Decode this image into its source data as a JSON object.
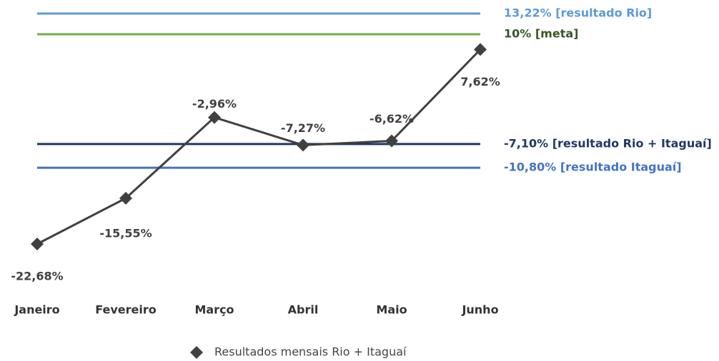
{
  "chart_data": {
    "type": "line",
    "categories": [
      "Janeiro",
      "Fevereiro",
      "Março",
      "Abril",
      "Maio",
      "Junho"
    ],
    "series": [
      {
        "name": "Resultados mensais Rio + Itaguaí",
        "color": "#404040",
        "values": [
          -22.68,
          -15.55,
          -2.96,
          -7.27,
          -6.62,
          7.62
        ],
        "value_labels": [
          "-22,68%",
          "-15,55%",
          "-2,96%",
          "-7,27%",
          "-6,62%",
          "7,62%"
        ]
      }
    ],
    "reference_lines": [
      {
        "value": 13.22,
        "label": "13,22% [resultado Rio]",
        "color": "#5b9bd5",
        "label_color": "#5b9bd5"
      },
      {
        "value": 10,
        "label": "10% [meta]",
        "color": "#70ad47",
        "label_color": "#375623"
      },
      {
        "value": -7.1,
        "label": "-7,10% [resultado Rio + Itaguaí]",
        "color": "#1f3864",
        "label_color": "#1f3864"
      },
      {
        "value": -10.8,
        "label": "-10,80% [resultado Itaguaí]",
        "color": "#4472c4",
        "label_color": "#4472c4"
      }
    ],
    "legend": "bottom"
  }
}
